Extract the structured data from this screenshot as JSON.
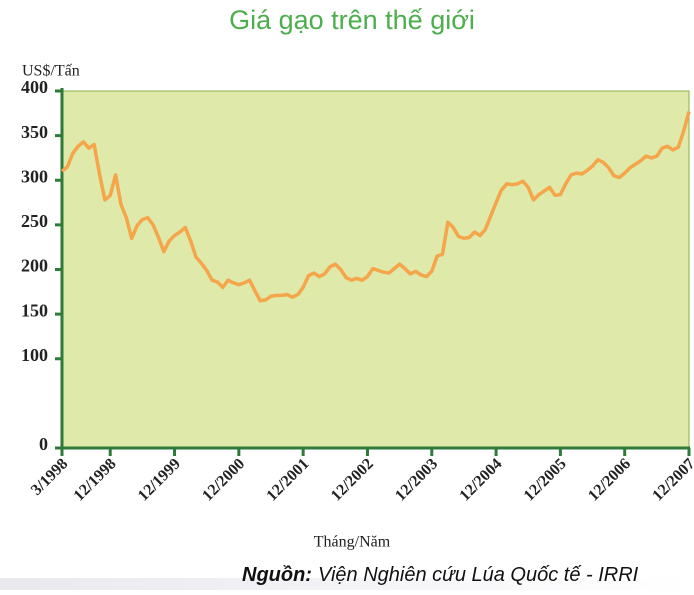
{
  "chart_data": {
    "type": "line",
    "title": "Giá gạo trên thế giới",
    "y_label": "US$/Tấn",
    "x_label": "Tháng/Năm",
    "source_label": "Nguồn:",
    "source": "Viện Nghiên cứu Lúa Quốc tế - IRRI",
    "categories": [
      "3/1998",
      null,
      null,
      null,
      null,
      null,
      null,
      null,
      null,
      "12/1998",
      null,
      null,
      null,
      null,
      null,
      null,
      null,
      null,
      null,
      null,
      null,
      "12/1999",
      null,
      null,
      null,
      null,
      null,
      null,
      null,
      null,
      null,
      null,
      null,
      "12/2000",
      null,
      null,
      null,
      null,
      null,
      null,
      null,
      null,
      null,
      null,
      null,
      "12/2001",
      null,
      null,
      null,
      null,
      null,
      null,
      null,
      null,
      null,
      null,
      null,
      "12/2002",
      null,
      null,
      null,
      null,
      null,
      null,
      null,
      null,
      null,
      null,
      null,
      "12/2003",
      null,
      null,
      null,
      null,
      null,
      null,
      null,
      null,
      null,
      null,
      null,
      "12/2004",
      null,
      null,
      null,
      null,
      null,
      null,
      null,
      null,
      null,
      null,
      null,
      "12/2005",
      null,
      null,
      null,
      null,
      null,
      null,
      null,
      null,
      null,
      null,
      null,
      "12/2006",
      null,
      null,
      null,
      null,
      null,
      null,
      null,
      null,
      null,
      null,
      null,
      "12/2007"
    ],
    "values": [
      310,
      315,
      330,
      338,
      343,
      336,
      340,
      307,
      278,
      283,
      306,
      273,
      258,
      235,
      249,
      256,
      258,
      250,
      236,
      220,
      232,
      238,
      242,
      247,
      232,
      214,
      207,
      199,
      188,
      186,
      180,
      188,
      185,
      183,
      185,
      188,
      176,
      165,
      166,
      170,
      171,
      171,
      172,
      169,
      172,
      180,
      193,
      196,
      192,
      195,
      203,
      206,
      200,
      191,
      188,
      190,
      188,
      192,
      201,
      199,
      197,
      196,
      201,
      206,
      201,
      195,
      198,
      194,
      192,
      198,
      215,
      217,
      253,
      247,
      237,
      235,
      236,
      242,
      238,
      245,
      260,
      275,
      289,
      296,
      295,
      296,
      299,
      292,
      278,
      284,
      288,
      292,
      283,
      284,
      296,
      306,
      308,
      307,
      311,
      316,
      323,
      320,
      314,
      305,
      303,
      308,
      314,
      318,
      322,
      327,
      325,
      327,
      336,
      338,
      334,
      337,
      355,
      377
    ],
    "color": "#f5a54a",
    "ylim": [
      0,
      400
    ],
    "yticks": [
      0,
      100,
      150,
      200,
      250,
      300,
      350,
      400
    ]
  }
}
